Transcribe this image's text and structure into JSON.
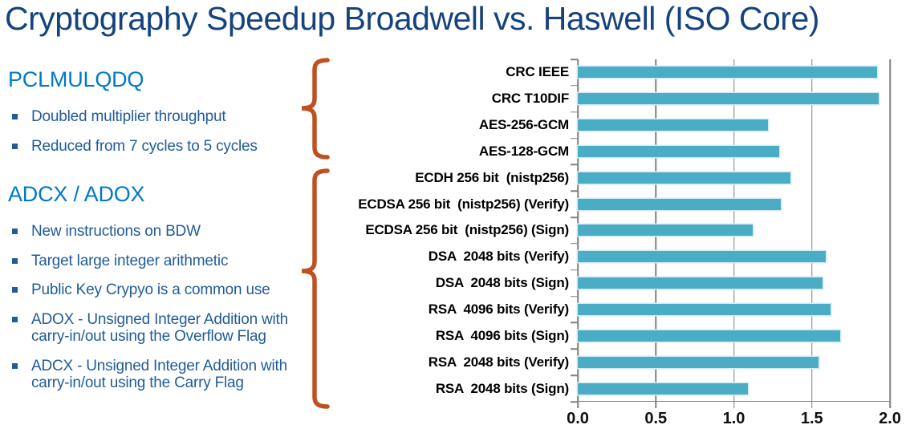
{
  "title": "Cryptography Speedup Broadwell vs. Haswell (ISO Core)",
  "sections": [
    {
      "heading": "PCLMULQDQ",
      "bullets": [
        "Doubled multiplier throughput",
        "Reduced from 7 cycles to 5 cycles"
      ]
    },
    {
      "heading": "ADCX / ADOX",
      "bullets": [
        "New instructions on BDW",
        "Target large integer arithmetic",
        "Public Key Crypyo is a common use",
        "ADOX - Unsigned Integer Addition with carry-in/out using the Overflow Flag",
        "ADCX - Unsigned Integer Addition with carry-in/out using the Carry Flag"
      ]
    }
  ],
  "chart_data": {
    "type": "bar",
    "orientation": "horizontal",
    "title": "Cryptography Speedup Broadwell vs. Haswell (ISO Core)",
    "xlabel": "",
    "ylabel": "",
    "xlim": [
      0,
      2.0
    ],
    "x_tick_labels": [
      "0.0",
      "0.5",
      "1.0",
      "1.5",
      "2.0"
    ],
    "grid": true,
    "legend": "none",
    "bar_color": "#4BACC6",
    "categories": [
      "CRC IEEE",
      "CRC T10DIF",
      "AES-256-GCM",
      "AES-128-GCM",
      "ECDH 256 bit  (nistp256)",
      "ECDSA 256 bit  (nistp256) (Verify)",
      "ECDSA 256 bit  (nistp256) (Sign)",
      "DSA  2048 bits (Verify)",
      "DSA  2048 bits (Sign)",
      "RSA  4096 bits (Verify)",
      "RSA  4096 bits (Sign)",
      "RSA  2048 bits (Verify)",
      "RSA  2048 bits (Sign)"
    ],
    "values": [
      1.92,
      1.93,
      1.22,
      1.29,
      1.36,
      1.3,
      1.12,
      1.59,
      1.57,
      1.62,
      1.68,
      1.54,
      1.09
    ]
  },
  "colors": {
    "title_navy": "#15437E",
    "heading_blue": "#0078C9",
    "bullet_blue": "#1F5C99",
    "bar_teal": "#4BACC6",
    "brace_orange": "#C0501F",
    "axis_gray": "#808080"
  }
}
